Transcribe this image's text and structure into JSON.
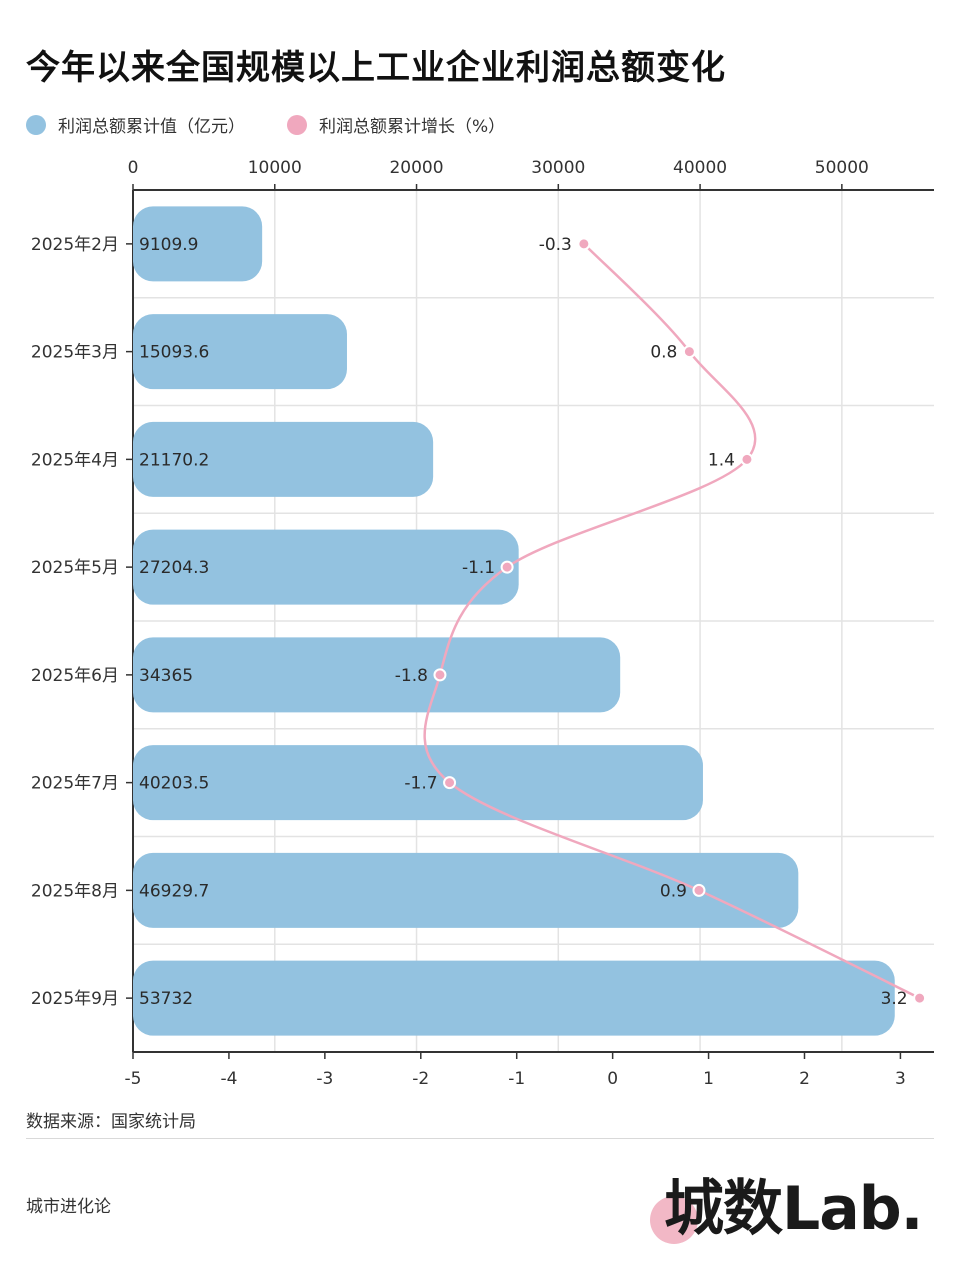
{
  "title": "今年以来全国规模以上工业企业利润总额变化",
  "legend": {
    "bar_label": "利润总额累计值（亿元）",
    "line_label": "利润总额累计增长（%）"
  },
  "colors": {
    "bar": "#93c2e0",
    "line": "#f0a8be",
    "grid": "#e3e3e3",
    "axis": "#333333"
  },
  "chart_data": {
    "type": "bar",
    "orientation": "horizontal",
    "categories": [
      "2025年2月",
      "2025年3月",
      "2025年4月",
      "2025年5月",
      "2025年6月",
      "2025年7月",
      "2025年8月",
      "2025年9月"
    ],
    "series": [
      {
        "name": "利润总额累计值（亿元）",
        "type": "bar",
        "axis": "top",
        "values": [
          9109.9,
          15093.6,
          21170.2,
          27204.3,
          34365,
          40203.5,
          46929.7,
          53732
        ],
        "labels": [
          "9109.9",
          "15093.6",
          "21170.2",
          "27204.3",
          "34365",
          "40203.5",
          "46929.7",
          "53732"
        ]
      },
      {
        "name": "利润总额累计增长（%）",
        "type": "line",
        "axis": "bottom",
        "values": [
          -0.3,
          0.8,
          1.4,
          -1.1,
          -1.8,
          -1.7,
          0.9,
          3.2
        ],
        "labels": [
          "-0.3",
          "0.8",
          "1.4",
          "-1.1",
          "-1.8",
          "-1.7",
          "0.9",
          "3.2"
        ]
      }
    ],
    "top_axis": {
      "range": [
        0,
        56500
      ],
      "ticks": [
        0,
        10000,
        20000,
        30000,
        40000,
        50000
      ],
      "tick_labels": [
        "0",
        "10000",
        "20000",
        "30000",
        "40000",
        "50000"
      ]
    },
    "bottom_axis": {
      "range": [
        -5,
        3.35
      ],
      "ticks": [
        -5,
        -4,
        -3,
        -2,
        -1,
        0,
        1,
        2,
        3
      ],
      "tick_labels": [
        "-5",
        "-4",
        "-3",
        "-2",
        "-1",
        "0",
        "1",
        "2",
        "3"
      ]
    },
    "grid": true,
    "legend_position": "top-left"
  },
  "source": "数据来源：国家统计局",
  "footer": {
    "left_text": "城市进化论",
    "brand": "城数Lab."
  }
}
